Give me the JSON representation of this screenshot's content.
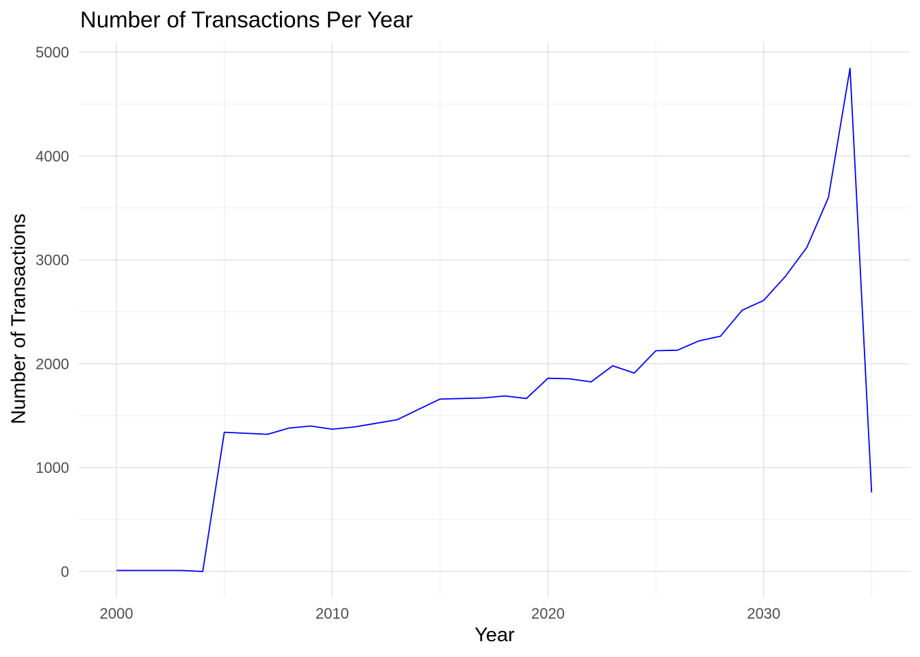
{
  "chart_data": {
    "type": "line",
    "title": "Number of Transactions Per Year",
    "xlabel": "Year",
    "ylabel": "Number of Transactions",
    "x": [
      2000,
      2001,
      2002,
      2003,
      2004,
      2005,
      2006,
      2007,
      2008,
      2009,
      2010,
      2011,
      2012,
      2013,
      2014,
      2015,
      2016,
      2017,
      2018,
      2019,
      2020,
      2021,
      2022,
      2023,
      2024,
      2025,
      2026,
      2027,
      2028,
      2029,
      2030,
      2031,
      2032,
      2033,
      2034,
      2035
    ],
    "values": [
      10,
      10,
      10,
      10,
      0,
      1340,
      1330,
      1320,
      1380,
      1400,
      1370,
      1390,
      1425,
      1460,
      1560,
      1660,
      1665,
      1670,
      1690,
      1665,
      1860,
      1855,
      1825,
      1980,
      1910,
      2125,
      2130,
      2220,
      2265,
      2515,
      2610,
      2840,
      3120,
      3600,
      4845,
      760
    ],
    "xlim": [
      1998.25,
      2036.8
    ],
    "ylim": [
      -244,
      5100
    ],
    "x_ticks": {
      "major": [
        2000,
        2010,
        2020,
        2030
      ],
      "minor": [
        2005,
        2015,
        2025,
        2035
      ]
    },
    "y_ticks": {
      "major": [
        0,
        1000,
        2000,
        3000,
        4000,
        5000
      ],
      "minor": [
        500,
        1500,
        2500,
        3500,
        4500
      ]
    },
    "grid": "major-and-minor",
    "legend": "none",
    "colors": {
      "line": "#0000FF",
      "grid_major": "#E2E2E2",
      "grid_minor": "#EFEFEF",
      "tick_label": "#4D4D4D",
      "title": "#000000",
      "background": "#FFFFFF"
    }
  }
}
